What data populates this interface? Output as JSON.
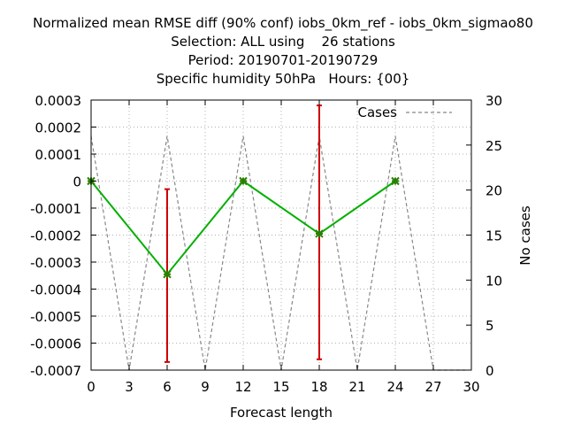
{
  "chart_data": {
    "type": "line",
    "title_lines": [
      "Normalized mean RMSE diff (90% conf) iobs_0km_ref - iobs_0km_sigmao80",
      "Selection: ALL using    26 stations",
      "Period: 20190701-20190729",
      "Specific humidity 50hPa   Hours: {00}"
    ],
    "xlabel": "Forecast length",
    "ylabel": "",
    "y2label": "No cases",
    "xlim": [
      0,
      30
    ],
    "ylim": [
      -0.0007,
      0.0003
    ],
    "y2lim": [
      0,
      30
    ],
    "x_ticks": [
      "0",
      "3",
      "6",
      "9",
      "12",
      "15",
      "18",
      "21",
      "24",
      "27",
      "30"
    ],
    "y_ticks": [
      "0.0003",
      "0.0002",
      "0.0001",
      "0",
      "-0.0001",
      "-0.0002",
      "-0.0003",
      "-0.0004",
      "-0.0005",
      "-0.0006",
      "-0.0007"
    ],
    "y2_ticks": [
      "30",
      "25",
      "20",
      "15",
      "10",
      "5",
      "0"
    ],
    "grid": true,
    "legend": {
      "entries": [
        {
          "label": "Cases",
          "color": "#888888",
          "style": "dashed"
        }
      ],
      "placement": "top-right"
    },
    "series": [
      {
        "color": "#00b000",
        "marker_color": "#2a8000",
        "x": [
          0,
          6,
          12,
          18,
          24
        ],
        "y": [
          0.0,
          -0.000345,
          0.0,
          -0.000195,
          0.0
        ]
      }
    ],
    "error_bars": {
      "color": "#cc0000",
      "items": [
        {
          "x": 6,
          "low": -0.00067,
          "high": -3e-05
        },
        {
          "x": 18,
          "low": -0.00066,
          "high": 0.00028
        }
      ]
    },
    "cases": {
      "color": "#888888",
      "x": [
        0,
        3,
        6,
        9,
        12,
        15,
        18,
        21,
        24,
        27,
        29.5
      ],
      "y": [
        26,
        0,
        26,
        0,
        26,
        0,
        26,
        0,
        26,
        0,
        0
      ]
    }
  }
}
